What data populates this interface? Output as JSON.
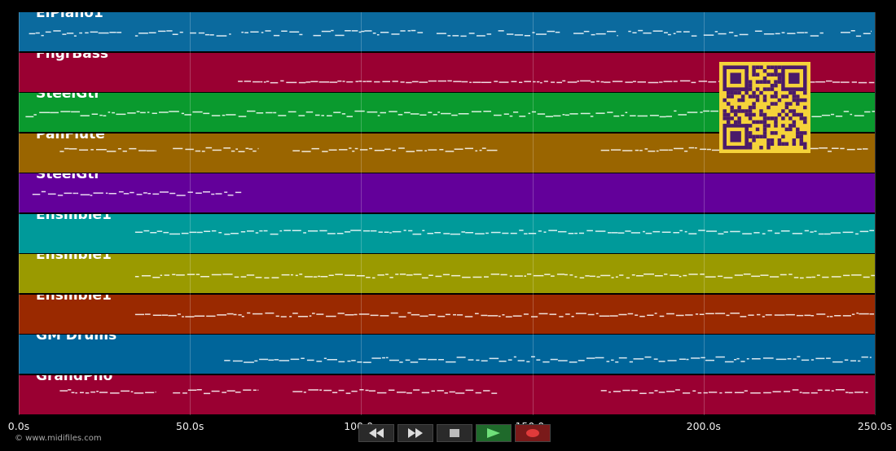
{
  "tracks": [
    {
      "name": "ElPiano1",
      "color": "#0b6a9e"
    },
    {
      "name": "FngrBass",
      "color": "#9a0032"
    },
    {
      "name": "SteelGtr",
      "color": "#0a9a2e"
    },
    {
      "name": "PanFlute",
      "color": "#9a6500"
    },
    {
      "name": "SteelGtr",
      "color": "#63009a"
    },
    {
      "name": "Ensmble1",
      "color": "#009a9a"
    },
    {
      "name": "Ensmble1",
      "color": "#9a9a00"
    },
    {
      "name": "Ensmble1",
      "color": "#9a2900"
    },
    {
      "name": "GM Drums",
      "color": "#00659a"
    },
    {
      "name": "GrandPno",
      "color": "#9a0032"
    }
  ],
  "timeline": {
    "unit": "s",
    "max_seconds": 250.0,
    "ticks": [
      {
        "label": "0.0s",
        "value": 0
      },
      {
        "label": "50.0s",
        "value": 50
      },
      {
        "label": "100.0s",
        "value": 100
      },
      {
        "label": "150.0s",
        "value": 150
      },
      {
        "label": "200.0s",
        "value": 200
      },
      {
        "label": "250.0s",
        "value": 250
      }
    ]
  },
  "transport": {
    "rewind": "rewind-icon",
    "fast_forward": "fast-forward-icon",
    "stop": "stop-icon",
    "play": "play-icon",
    "record": "record-icon"
  },
  "qr_code": "qr-code",
  "copyright": "© www.midifiles.com"
}
